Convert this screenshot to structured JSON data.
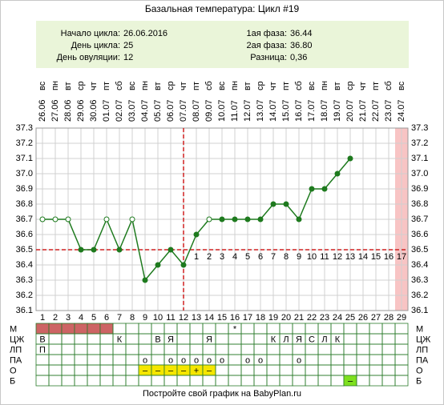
{
  "chart_data": {
    "type": "line",
    "title": "Базальная температура: Цикл #19",
    "info": {
      "left": [
        {
          "label": "Начало цикла:",
          "value": "26.06.2016"
        },
        {
          "label": "День цикла:",
          "value": "25"
        },
        {
          "label": "День овуляции:",
          "value": "12"
        }
      ],
      "right": [
        {
          "label": "1ая фаза:",
          "value": "36.44"
        },
        {
          "label": "2ая фаза:",
          "value": "36.80"
        },
        {
          "label": "Разница:",
          "value": "0,36"
        }
      ]
    },
    "weekdays": [
      "вс",
      "пн",
      "вт",
      "ср",
      "чт",
      "пт",
      "сб",
      "вс",
      "пн",
      "вт",
      "ср",
      "чт",
      "пт",
      "сб",
      "вс",
      "пн",
      "вт",
      "ср",
      "чт",
      "пт",
      "сб",
      "вс",
      "пн",
      "вт",
      "ср",
      "чт",
      "пт",
      "сб",
      "вс"
    ],
    "dates": [
      "26.06",
      "27.06",
      "28.06",
      "29.06",
      "30.06",
      "01.07",
      "02.07",
      "03.07",
      "04.07",
      "05.07",
      "06.07",
      "07.07",
      "08.07",
      "09.07",
      "10.07",
      "11.07",
      "12.07",
      "13.07",
      "14.07",
      "15.07",
      "16.07",
      "17.07",
      "18.07",
      "19.07",
      "20.07",
      "21.07",
      "22.07",
      "23.07",
      "24.07"
    ],
    "x": [
      1,
      2,
      3,
      4,
      5,
      6,
      7,
      8,
      9,
      10,
      11,
      12,
      13,
      14,
      15,
      16,
      17,
      18,
      19,
      20,
      21,
      22,
      23,
      24,
      25,
      26,
      27,
      28,
      29
    ],
    "values": [
      36.7,
      36.7,
      36.7,
      36.5,
      36.5,
      36.7,
      36.5,
      36.7,
      36.3,
      36.4,
      36.5,
      36.4,
      36.6,
      36.7,
      36.7,
      36.7,
      36.7,
      36.7,
      36.8,
      36.8,
      36.7,
      36.9,
      36.9,
      37.0,
      37.1,
      null,
      null,
      null,
      null
    ],
    "hollow": [
      true,
      true,
      true,
      false,
      false,
      true,
      false,
      true,
      false,
      false,
      false,
      false,
      false,
      true,
      false,
      false,
      false,
      false,
      false,
      false,
      false,
      false,
      false,
      false,
      false,
      false,
      false,
      false,
      false
    ],
    "color": "#1e7a1e",
    "ylim": [
      36.1,
      37.3
    ],
    "yticks": [
      36.1,
      36.2,
      36.3,
      36.4,
      36.5,
      36.6,
      36.7,
      36.8,
      36.9,
      {
        "value": 37.0,
        "label": "37.0"
      },
      37.1,
      37.2,
      37.3
    ],
    "grid": true,
    "coverline": 36.5,
    "ovulation_day": 12,
    "shaded_day": 29,
    "post_ovulation_days": [
      null,
      null,
      null,
      null,
      null,
      null,
      null,
      null,
      null,
      null,
      null,
      null,
      1,
      2,
      3,
      4,
      5,
      6,
      7,
      8,
      9,
      10,
      11,
      12,
      13,
      14,
      15,
      16,
      17
    ],
    "table": [
      {
        "label": "М",
        "cells": [
          {
            "fill": "#cd6464"
          },
          {
            "fill": "#cd6464"
          },
          {
            "fill": "#cd6464"
          },
          {
            "fill": "#cd6464"
          },
          {
            "fill": "#cd6464"
          },
          {
            "fill": "#cd6464"
          },
          null,
          null,
          null,
          null,
          null,
          null,
          null,
          null,
          null,
          {
            "text": "*",
            "color": "#d04040"
          },
          null,
          null,
          null,
          null,
          null,
          null,
          null,
          null,
          null,
          null,
          null,
          null,
          null
        ]
      },
      {
        "label": "ЦЖ",
        "cells": [
          {
            "text": "В"
          },
          null,
          null,
          null,
          null,
          null,
          {
            "text": "К"
          },
          null,
          null,
          {
            "text": "В"
          },
          {
            "text": "Я"
          },
          null,
          null,
          {
            "text": "Я"
          },
          null,
          null,
          null,
          null,
          {
            "text": "К"
          },
          {
            "text": "Л"
          },
          {
            "text": "Я"
          },
          {
            "text": "С"
          },
          {
            "text": "Л"
          },
          {
            "text": "К"
          },
          null,
          null,
          null,
          null,
          null
        ]
      },
      {
        "label": "ЛП",
        "cells": [
          {
            "text": "П"
          },
          null,
          null,
          null,
          null,
          null,
          null,
          null,
          null,
          null,
          null,
          null,
          null,
          null,
          null,
          null,
          null,
          null,
          null,
          null,
          null,
          null,
          null,
          null,
          null,
          null,
          null,
          null,
          null
        ]
      },
      {
        "label": "ПА",
        "cells": [
          null,
          null,
          null,
          null,
          null,
          null,
          null,
          null,
          {
            "text": "o",
            "color": "#d04040"
          },
          null,
          {
            "text": "o",
            "color": "#d04040"
          },
          {
            "text": "o",
            "color": "#d04040"
          },
          {
            "text": "o",
            "color": "#d04040"
          },
          {
            "text": "o",
            "color": "#d04040"
          },
          {
            "text": "o",
            "color": "#d04040"
          },
          null,
          {
            "text": "o",
            "color": "#d04040"
          },
          {
            "text": "o",
            "color": "#d04040"
          },
          null,
          null,
          {
            "text": "o",
            "color": "#d04040"
          },
          null,
          null,
          null,
          null,
          null,
          null,
          null,
          null
        ]
      },
      {
        "label": "О",
        "cells": [
          null,
          null,
          null,
          null,
          null,
          null,
          null,
          null,
          {
            "text": "–",
            "fill": "#f5e600"
          },
          {
            "text": "–",
            "fill": "#f5e600"
          },
          {
            "text": "–",
            "fill": "#f5e600"
          },
          {
            "text": "–",
            "fill": "#f5e600"
          },
          {
            "text": "+",
            "fill": "#f5e600",
            "color": "#d04040"
          },
          {
            "text": "–",
            "fill": "#f5e600"
          },
          null,
          null,
          null,
          null,
          null,
          null,
          null,
          null,
          null,
          null,
          null,
          null,
          null,
          null,
          null
        ]
      },
      {
        "label": "Б",
        "cells": [
          null,
          null,
          null,
          null,
          null,
          null,
          null,
          null,
          null,
          null,
          null,
          null,
          null,
          null,
          null,
          null,
          null,
          null,
          null,
          null,
          null,
          null,
          null,
          null,
          {
            "text": "–",
            "fill": "#7ee01e"
          },
          null,
          null,
          null,
          null
        ]
      }
    ],
    "footer": "Постройте свой график на BabyPlan.ru"
  }
}
